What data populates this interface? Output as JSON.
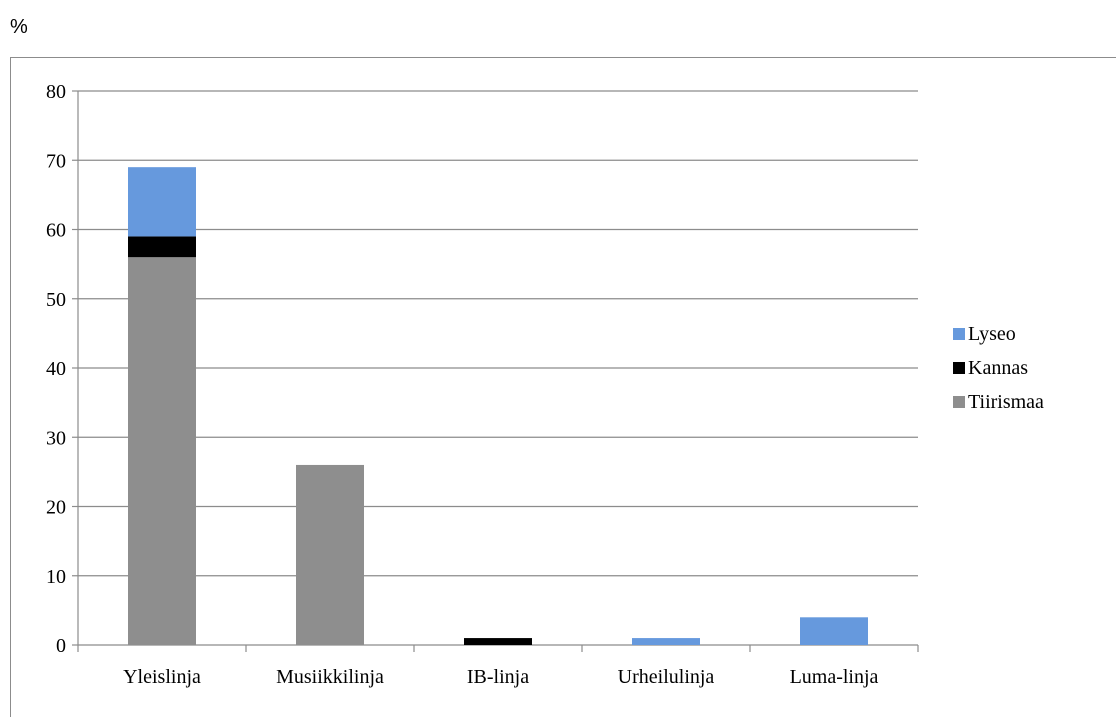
{
  "chart_data": {
    "type": "bar",
    "stacked": true,
    "unit_label": "%",
    "categories": [
      "Yleislinja",
      "Musiikkilinja",
      "IB-linja",
      "Urheilulinja",
      "Luma-linja"
    ],
    "series": [
      {
        "name": "Tiirismaa",
        "color": "#8e8e8e",
        "values": [
          56,
          26,
          0,
          0,
          0
        ]
      },
      {
        "name": "Kannas",
        "color": "#000000",
        "values": [
          3,
          0,
          1,
          0,
          0
        ]
      },
      {
        "name": "Lyseo",
        "color": "#6699dd",
        "values": [
          10,
          0,
          0,
          1,
          4
        ]
      }
    ],
    "legend_order": [
      "Lyseo",
      "Kannas",
      "Tiirismaa"
    ],
    "ylim": [
      0,
      80
    ],
    "yticks": [
      0,
      10,
      20,
      30,
      40,
      50,
      60,
      70,
      80
    ],
    "grid": true,
    "legend_position": "right"
  }
}
